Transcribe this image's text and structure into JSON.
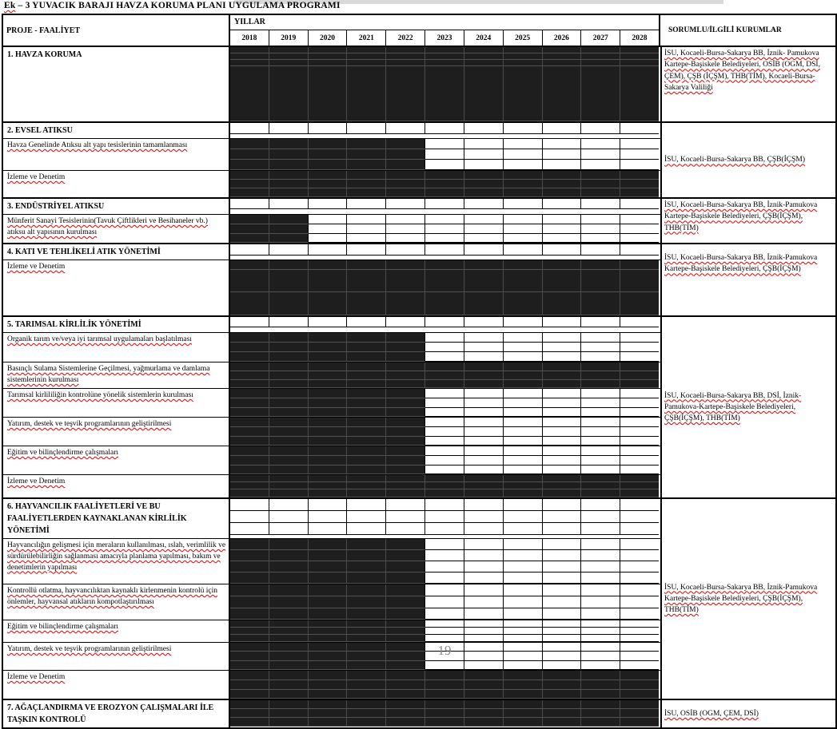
{
  "page": {
    "title_flagged_word": "Ek",
    "title_rest": " – 3  YUVACIK  BARAJI HAVZA KORUMA PLANI UYGULAMA PROGRAMI",
    "page_number": "19"
  },
  "colors": {
    "bar_fill": "#1e1e1e",
    "spellcheck_red": "#e00000",
    "page_number_gray": "#8c8c8c",
    "artifact_strip_gray": "#d9d9d9"
  },
  "table": {
    "header": {
      "project_col": "PROJE - FAALİYET",
      "years_group": "YILLAR",
      "institutions_col": "SORUMLU/İLGİLİ KURUMLAR"
    },
    "years": [
      "2018",
      "2019",
      "2020",
      "2021",
      "2022",
      "2023",
      "2024",
      "2025",
      "2026",
      "2027",
      "2028"
    ],
    "sections": [
      {
        "institutions": "İSU, Kocaeli-Bursa-Sakarya BB, İznik- Pamukova Kartepe-Başiskele Belediyeleri, OSİB (OGM, DSİ, ÇEM), ÇŞB (İÇŞM), THB(TİM), Kocaeli-Bursa-Sakarya Valiliği",
        "inst_align": "top",
        "rows": [
          {
            "label": "1. HAVZA KORUMA",
            "bold": true,
            "active_from": "2018",
            "active_to": "2028",
            "subrow_heights": [
              8,
              8,
              8,
              69
            ]
          }
        ]
      },
      {
        "institutions": "İSU, Kocaeli-Bursa-Sakarya BB, ÇŞB(İÇŞM)",
        "inst_align": "center",
        "rows": [
          {
            "label": "2. EVSEL ATIKSU",
            "bold": true,
            "active_from": null,
            "active_to": null,
            "subrow_heights": [
              14
            ]
          },
          {
            "label": "Havza Genelinde Atıksu alt yapı tesislerinin tamamlanması",
            "bold": false,
            "active_from": "2018",
            "active_to": "2022",
            "subrow_heights": [
              13,
              13,
              13
            ]
          },
          {
            "label": "İzleme ve Denetim",
            "bold": false,
            "active_from": "2018",
            "active_to": "2028",
            "subrow_heights": [
              11,
              11,
              11
            ]
          }
        ]
      },
      {
        "institutions": "İSU, Kocaeli-Bursa-Sakarya BB,  İznik-Pamukova Kartepe-Başiskele Belediyeleri, ÇŞB(İÇŞM), THB(TİM)",
        "inst_align": "top",
        "rows": [
          {
            "label": "3. ENDÜSTRİYEL ATIKSU",
            "bold": true,
            "active_from": null,
            "active_to": null,
            "subrow_heights": [
              13
            ]
          },
          {
            "label": "Münferit Sanayi Tesislerinin(Tavuk Çiftlikleri ve Besihaneler vb.)  atıksu alt yapısının kurulması",
            "bold": false,
            "active_from": "2018",
            "active_to": "2019",
            "subrow_heights": [
              12,
              12,
              11
            ]
          }
        ]
      },
      {
        "institutions": "İSU, Kocaeli-Bursa-Sakarya BB,  İznik-Pamukova Kartepe-Başiskele Belediyeleri, ÇŞB(İÇŞM)",
        "inst_align": "high",
        "rows": [
          {
            "label": "4. KATI VE TEHLİKELİ ATIK YÖNETİMİ",
            "bold": true,
            "active_from": null,
            "active_to": null,
            "subrow_heights": [
              14
            ]
          },
          {
            "label": "İzleme ve Denetim",
            "bold": false,
            "active_from": "2018",
            "active_to": "2028",
            "subrow_heights": [
              12,
              28,
              29
            ]
          }
        ]
      },
      {
        "institutions": "İSU, Kocaeli-Bursa-Sakarya BB, DSİ, İznik-Pamukova-Kartepe-Başiskele Belediyeleri, ÇŞB(İÇŞM), THB(TİM)",
        "inst_align": "center",
        "rows": [
          {
            "label": "5. TARIMSAL KİRLİLİK YÖNETİMİ",
            "bold": true,
            "active_from": null,
            "active_to": null,
            "subrow_heights": [
              13
            ]
          },
          {
            "label": "Organik tarım ve/veya iyi tarımsal uygulamaları başlatılması",
            "bold": false,
            "active_from": "2018",
            "active_to": "2022",
            "subrow_heights": [
              12,
              12,
              12
            ]
          },
          {
            "label": "Basınçlı Sulama Sistemlerine Geçilmesi,  yağmurlama ve damlama sistemlerinin kurulması",
            "bold": false,
            "active_from": "2018",
            "active_to": "2028",
            "subrow_heights": [
              11,
              11,
              10
            ]
          },
          {
            "label": "Tarımsal kirlililiğin kontrolüne yönelik sistemlerin kurulması",
            "bold": false,
            "active_from": "2018",
            "active_to": "2022",
            "subrow_heights": [
              12,
              12,
              11
            ]
          },
          {
            "label": "Yatırım,  destek ve teşvik programlarının geliştirilmesi",
            "bold": false,
            "active_from": "2018",
            "active_to": "2022",
            "subrow_heights": [
              12,
              12,
              11
            ]
          },
          {
            "label": "Eğitim ve bilinçlendirme çalışmaları",
            "bold": false,
            "active_from": "2018",
            "active_to": "2022",
            "subrow_heights": [
              12,
              12,
              11
            ]
          },
          {
            "label": "İzleme ve Denetim",
            "bold": false,
            "active_from": "2018",
            "active_to": "2028",
            "subrow_heights": [
              9,
              9,
              10
            ]
          }
        ]
      },
      {
        "institutions": "İSU, Kocaeli-Bursa-Sakarya BB,  İznik-Pamukova Kartepe-Başiskele Belediyeleri, ÇŞB(İÇŞM), THB(TİM)",
        "inst_align": "center",
        "rows": [
          {
            "label": "6. HAYVANCILIK FAALİYETLERİ VE BU FAALİYETLERDEN KAYNAKLANAN KİRLİLİK YÖNETİMİ",
            "bold": true,
            "active_from": null,
            "active_to": null,
            "subrow_heights": [
              15,
              15,
              15
            ]
          },
          {
            "label": "Hayvancılığın gelişmesi için meraların kullanılması, ıslah, verimlilik ve sürdürülebilirliğin sağlanması amacıyla planlama yapılması,  bakım ve denetimlerin yapılması",
            "bold": false,
            "active_from": "2018",
            "active_to": "2022",
            "subrow_heights": [
              14,
              14,
              14,
              14
            ]
          },
          {
            "label": "Kontrollü otlatma,  hayvancılıktan kaynaklı kirlenmenin kontrolü için önlemler,  hayvansal atıkların kompotlaştırılması",
            "bold": false,
            "active_from": "2018",
            "active_to": "2022",
            "subrow_heights": [
              15,
              15,
              14
            ]
          },
          {
            "label": "Eğitim ve bilinçlendirme çalışmaları",
            "bold": false,
            "active_from": "2018",
            "active_to": "2022",
            "subrow_heights": [
              9,
              9,
              9
            ]
          },
          {
            "label": "Yatırım,  destek ve teşvik programlarının geliştirilmesi",
            "bold": false,
            "active_from": "2018",
            "active_to": "2022",
            "subrow_heights": [
              11,
              12,
              11
            ]
          },
          {
            "label": "İzleme ve Denetim",
            "bold": false,
            "active_from": "2018",
            "active_to": "2028",
            "subrow_heights": [
              12,
              12,
              11
            ]
          }
        ]
      },
      {
        "institutions": "İSU, OSİB (OGM, ÇEM, DSİ)",
        "inst_align": "center",
        "rows": [
          {
            "label": "7. AĞAÇLANDIRMA VE EROZYON ÇALIŞMALARI İLE TAŞKIN KONTROLÜ",
            "bold": true,
            "active_from": "2018",
            "active_to": "2028",
            "subrow_heights": [
              11,
              11,
              11
            ]
          }
        ]
      }
    ]
  }
}
